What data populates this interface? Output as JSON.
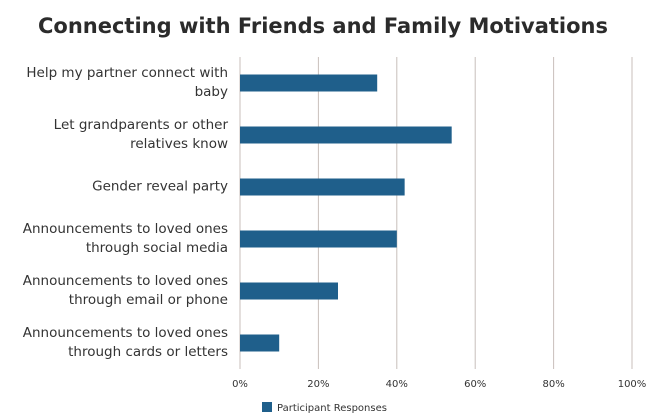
{
  "chart_data": {
    "type": "bar",
    "orientation": "horizontal",
    "title": "Connecting with Friends and Family Motivations",
    "categories": [
      "Help my partner connect with baby",
      "Let grandparents or other relatives know",
      "Gender reveal party",
      "Announcements to loved ones through social media",
      "Announcements to loved ones through email or phone",
      "Announcements to loved ones through cards or letters"
    ],
    "series": [
      {
        "name": "Participant Responses",
        "color": "#1f5f8b",
        "values": [
          35,
          54,
          42,
          40,
          25,
          10
        ]
      }
    ],
    "xlim": [
      0,
      100
    ],
    "xticks": [
      {
        "value": 0,
        "label": "0%"
      },
      {
        "value": 20,
        "label": "20%"
      },
      {
        "value": 40,
        "label": "40%"
      },
      {
        "value": 60,
        "label": "60%"
      },
      {
        "value": 80,
        "label": "80%"
      },
      {
        "value": 100,
        "label": "100%"
      }
    ],
    "grid": true,
    "legend": "bottom"
  }
}
